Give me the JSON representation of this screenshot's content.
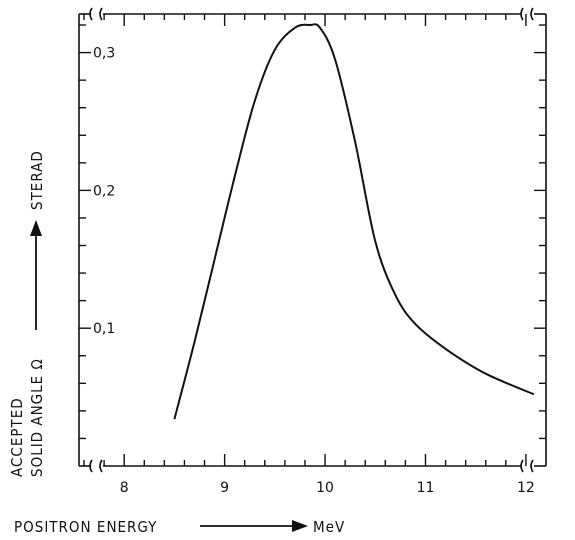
{
  "chart_data": {
    "type": "line",
    "x_unit": "MeV",
    "y_unit": "STERAD",
    "xlabel": "POSITRON ENERGY",
    "ylabel_line1": "ACCEPTED",
    "ylabel_line2": "SOLID ANGLE Ω",
    "xlim": [
      7.55,
      12.2
    ],
    "ylim": [
      0.0,
      0.328
    ],
    "xticks": [
      {
        "value": 8,
        "label": "8"
      },
      {
        "value": 9,
        "label": "9"
      },
      {
        "value": 10,
        "label": "10"
      },
      {
        "value": 11,
        "label": "11"
      },
      {
        "value": 12,
        "label": "12"
      }
    ],
    "yticks": [
      {
        "value": 0.1,
        "label": "0,1"
      },
      {
        "value": 0.2,
        "label": "0,2"
      },
      {
        "value": 0.3,
        "label": "0,3"
      }
    ],
    "series": [
      {
        "x": [
          8.5,
          8.7,
          8.9,
          9.1,
          9.3,
          9.5,
          9.7,
          9.85,
          9.95,
          10.1,
          10.3,
          10.5,
          10.7,
          10.9,
          11.2,
          11.6,
          12.08
        ],
        "y": [
          0.034,
          0.09,
          0.15,
          0.21,
          0.265,
          0.302,
          0.318,
          0.32,
          0.318,
          0.295,
          0.235,
          0.163,
          0.124,
          0.103,
          0.085,
          0.067,
          0.052
        ]
      }
    ]
  }
}
